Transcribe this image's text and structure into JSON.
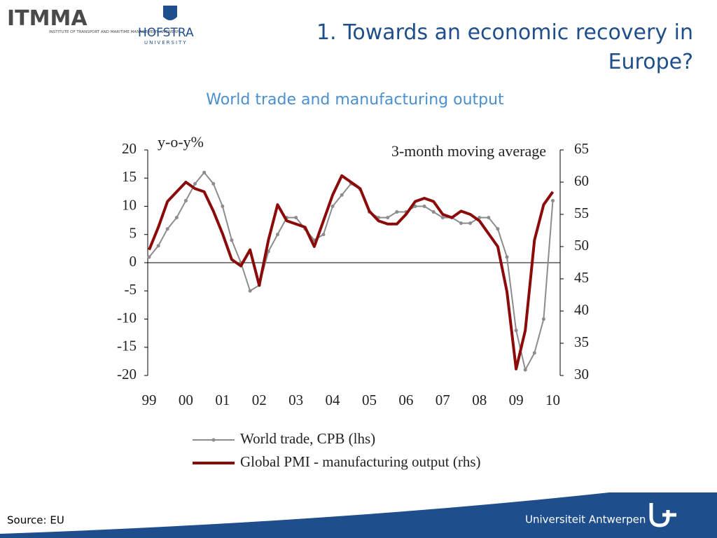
{
  "header": {
    "logo_left": "ITMMA",
    "logo_left_sub": "INSTITUTE OF TRANSPORT AND MARITIME MANAGEMENT ANTWERP",
    "logo_right": "HOFSTRA",
    "logo_right_sub": "UNIVERSITY",
    "title": "1. Towards an economic recovery in Europe?"
  },
  "footer": {
    "source": "Source: EU",
    "university": "Universiteit Antwerpen"
  },
  "chart_data": {
    "type": "line",
    "title": "World trade and manufacturing output",
    "annotations": [
      "y-o-y%",
      "3-month moving average"
    ],
    "x": [
      1999,
      1999.25,
      1999.5,
      1999.75,
      2000,
      2000.25,
      2000.5,
      2000.75,
      2001,
      2001.25,
      2001.5,
      2001.75,
      2002,
      2002.25,
      2002.5,
      2002.75,
      2003,
      2003.25,
      2003.5,
      2003.75,
      2004,
      2004.25,
      2004.5,
      2004.75,
      2005,
      2005.25,
      2005.5,
      2005.75,
      2006,
      2006.25,
      2006.5,
      2006.75,
      2007,
      2007.25,
      2007.5,
      2007.75,
      2008,
      2008.25,
      2008.5,
      2008.75,
      2009,
      2009.25,
      2009.5,
      2009.75,
      2010
    ],
    "xlim": [
      1999,
      2010.2
    ],
    "xticks": [
      {
        "value": 1999,
        "label": "99"
      },
      {
        "value": 2000,
        "label": "00"
      },
      {
        "value": 2001,
        "label": "01"
      },
      {
        "value": 2002,
        "label": "02"
      },
      {
        "value": 2003,
        "label": "03"
      },
      {
        "value": 2004,
        "label": "04"
      },
      {
        "value": 2005,
        "label": "05"
      },
      {
        "value": 2006,
        "label": "06"
      },
      {
        "value": 2007,
        "label": "07"
      },
      {
        "value": 2008,
        "label": "08"
      },
      {
        "value": 2009,
        "label": "09"
      },
      {
        "value": 2010,
        "label": "10"
      }
    ],
    "ylim": [
      -20,
      20
    ],
    "yticks": [
      20,
      15,
      10,
      5,
      0,
      -5,
      -10,
      -15,
      -20
    ],
    "y2lim": [
      30,
      65
    ],
    "y2ticks": [
      65,
      60,
      55,
      50,
      45,
      40,
      35,
      30
    ],
    "zero_line": true,
    "legend": "bottom",
    "series": [
      {
        "name": "World trade, CPB (lhs)",
        "color": "#8c8c8c",
        "axis": "y",
        "markers": true,
        "values": [
          1,
          3,
          6,
          8,
          11,
          14,
          16,
          14,
          10,
          4,
          0,
          -5,
          -4,
          2,
          5,
          8,
          8,
          6,
          4,
          5,
          10,
          12,
          14,
          13,
          9,
          8,
          8,
          9,
          9,
          10,
          10,
          9,
          8,
          8,
          7,
          7,
          8,
          8,
          6,
          1,
          -12,
          -19,
          -16,
          -10,
          11
        ]
      },
      {
        "name": "Global PMI - manufacturing output (rhs)",
        "color": "#8b0a0a",
        "axis": "y2",
        "markers": false,
        "values": [
          49.5,
          53,
          57,
          58.5,
          60,
          59,
          58.5,
          55.5,
          52,
          48,
          47,
          49.5,
          44,
          51,
          56.5,
          54,
          53.5,
          53,
          50,
          54,
          58,
          61,
          60,
          59,
          55.5,
          54,
          53.5,
          53.5,
          55,
          57,
          57.5,
          57,
          55,
          54.5,
          55.5,
          55,
          54,
          52,
          50,
          43,
          31,
          37,
          51,
          56.5,
          58.5
        ]
      }
    ]
  }
}
